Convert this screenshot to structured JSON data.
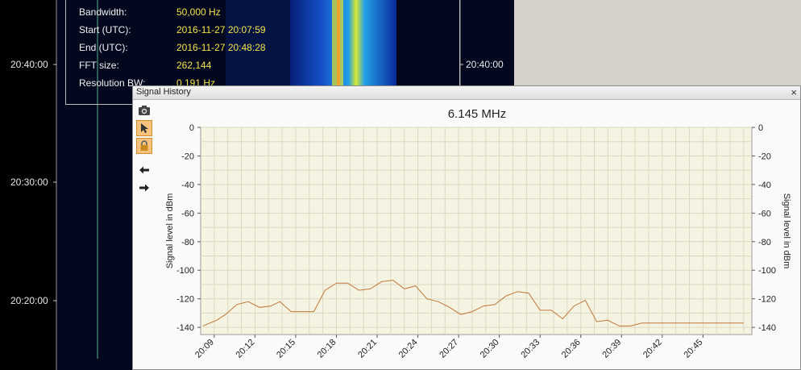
{
  "waterfall": {
    "time_labels_left": [
      "20:40:00",
      "20:30:00",
      "20:20:00"
    ],
    "time_labels_right": [
      "20:40:00"
    ]
  },
  "info": {
    "rows": [
      {
        "label": "Bandwidth:",
        "value": "50,000 Hz"
      },
      {
        "label": "Start (UTC):",
        "value": "2016-11-27 20:07:59"
      },
      {
        "label": "End (UTC):",
        "value": "2016-11-27 20:48:28"
      },
      {
        "label": "FFT size:",
        "value": "262,144"
      },
      {
        "label": "Resolution BW:",
        "value": "0.191 Hz"
      }
    ]
  },
  "window": {
    "title": "Signal History",
    "close": "×",
    "tools": [
      {
        "name": "camera-icon",
        "active": false
      },
      {
        "name": "pointer-icon",
        "active": true
      },
      {
        "name": "lock-icon",
        "active": true
      },
      {
        "name": "arrow-left-icon",
        "active": false
      },
      {
        "name": "arrow-right-icon",
        "active": false
      }
    ]
  },
  "chart_data": {
    "type": "line",
    "title": "6.145 MHz",
    "ylabel": "Signal level in dBm",
    "ylabel_right": "Signal level in dBm",
    "xlabel": "",
    "ylim": [
      -145,
      0
    ],
    "yticks": [
      0,
      -20,
      -40,
      -60,
      -80,
      -100,
      -120,
      -140
    ],
    "xlim_minutes": [
      8.0,
      48.6
    ],
    "xtick_labels": [
      "20:09",
      "20:12",
      "20:15",
      "20:18",
      "20:21",
      "20:24",
      "20:27",
      "20:30",
      "20:33",
      "20:36",
      "20:39",
      "20:42",
      "20:45"
    ],
    "xtick_minutes": [
      9,
      12,
      15,
      18,
      21,
      24,
      27,
      30,
      33,
      36,
      39,
      42,
      45
    ],
    "line_color": "#c0773a",
    "plot_background": "#f5f3e2",
    "grid": true,
    "x": [
      "20:08:10",
      "20:09:10",
      "20:09:50",
      "20:10:40",
      "20:11:30",
      "20:12:20",
      "20:13:10",
      "20:13:50",
      "20:14:40",
      "20:15:30",
      "20:16:20",
      "20:17:10",
      "20:18:00",
      "20:18:50",
      "20:19:40",
      "20:20:30",
      "20:21:20",
      "20:22:10",
      "20:23:00",
      "20:23:50",
      "20:24:40",
      "20:25:30",
      "20:26:20",
      "20:27:10",
      "20:28:00",
      "20:28:50",
      "20:29:40",
      "20:30:30",
      "20:31:20",
      "20:32:10",
      "20:33:00",
      "20:33:50",
      "20:34:40",
      "20:35:30",
      "20:36:20",
      "20:37:10",
      "20:38:00",
      "20:38:50",
      "20:39:40",
      "20:40:30",
      "20:41:20",
      "20:42:10",
      "20:43:00",
      "20:43:50",
      "20:44:40",
      "20:45:30",
      "20:46:20",
      "20:47:10",
      "20:48:00"
    ],
    "values": [
      -139,
      -135,
      -131,
      -124,
      -122,
      -126,
      -125,
      -122,
      -129,
      -129,
      -129,
      -114,
      -109,
      -109,
      -114,
      -113,
      -108,
      -107,
      -113,
      -111,
      -120,
      -122,
      -126,
      -131,
      -129,
      -125,
      -124,
      -118,
      -115,
      -116,
      -128,
      -128,
      -134,
      -125,
      -121,
      -136,
      -135,
      -139,
      -139,
      -137,
      -137,
      -137,
      -137,
      -137,
      -137,
      -137,
      -137,
      -137,
      -137
    ]
  }
}
